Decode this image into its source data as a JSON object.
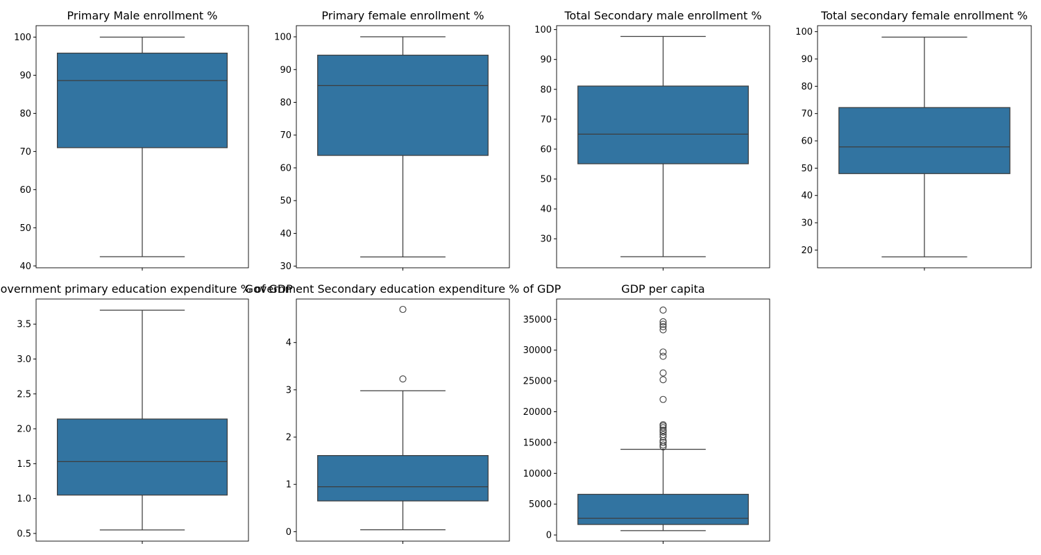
{
  "colors": {
    "box_fill": "#3274a1",
    "box_edge": "#3d3d3d",
    "axes_edge": "#000000",
    "background": "#ffffff"
  },
  "chart_data": [
    {
      "type": "box",
      "title": "Primary Male enrollment %",
      "ylim": [
        39.5,
        103
      ],
      "yticks": [
        40,
        50,
        60,
        70,
        80,
        90,
        100
      ],
      "tick_labels": [
        "40",
        "50",
        "60",
        "70",
        "80",
        "90",
        "100"
      ],
      "box": {
        "whisker_low": 42.4,
        "q1": 71.0,
        "median": 88.6,
        "q3": 95.8,
        "whisker_high": 100.0
      },
      "outliers": []
    },
    {
      "type": "box",
      "title": "Primary female enrollment %",
      "ylim": [
        29.5,
        103.4
      ],
      "yticks": [
        30,
        40,
        50,
        60,
        70,
        80,
        90,
        100
      ],
      "tick_labels": [
        "30",
        "40",
        "50",
        "60",
        "70",
        "80",
        "90",
        "100"
      ],
      "box": {
        "whisker_low": 32.8,
        "q1": 63.8,
        "median": 85.1,
        "q3": 94.4,
        "whisker_high": 100.0
      },
      "outliers": []
    },
    {
      "type": "box",
      "title": "Total Secondary male enrollment %",
      "ylim": [
        20.3,
        101.3
      ],
      "yticks": [
        30,
        40,
        50,
        60,
        70,
        80,
        90,
        100
      ],
      "tick_labels": [
        "30",
        "40",
        "50",
        "60",
        "70",
        "80",
        "90",
        "100"
      ],
      "box": {
        "whisker_low": 24.0,
        "q1": 55.1,
        "median": 65.0,
        "q3": 81.1,
        "whisker_high": 97.7
      },
      "outliers": []
    },
    {
      "type": "box",
      "title": "Total secondary female enrollment %",
      "ylim": [
        13.5,
        102.2
      ],
      "yticks": [
        20,
        30,
        40,
        50,
        60,
        70,
        80,
        90,
        100
      ],
      "tick_labels": [
        "20",
        "30",
        "40",
        "50",
        "60",
        "70",
        "80",
        "90",
        "100"
      ],
      "box": {
        "whisker_low": 17.5,
        "q1": 48.0,
        "median": 57.8,
        "q3": 72.2,
        "whisker_high": 98.0
      },
      "outliers": []
    },
    {
      "type": "box",
      "title": "Government primary education expenditure % of GDP",
      "ylim": [
        0.39,
        3.86
      ],
      "yticks": [
        0.5,
        1.0,
        1.5,
        2.0,
        2.5,
        3.0,
        3.5
      ],
      "tick_labels": [
        "0.5",
        "1.0",
        "1.5",
        "2.0",
        "2.5",
        "3.0",
        "3.5"
      ],
      "box": {
        "whisker_low": 0.55,
        "q1": 1.05,
        "median": 1.53,
        "q3": 2.14,
        "whisker_high": 3.7
      },
      "outliers": []
    },
    {
      "type": "box",
      "title": "Government Secondary education expenditure % of GDP",
      "ylim": [
        -0.2,
        4.92
      ],
      "yticks": [
        0,
        1,
        2,
        3,
        4
      ],
      "tick_labels": [
        "0",
        "1",
        "2",
        "3",
        "4"
      ],
      "box": {
        "whisker_low": 0.04,
        "q1": 0.65,
        "median": 0.95,
        "q3": 1.61,
        "whisker_high": 2.98
      },
      "outliers": [
        3.23,
        4.7
      ]
    },
    {
      "type": "box",
      "title": "GDP per capita",
      "ylim": [
        -1000,
        38300
      ],
      "yticks": [
        0,
        5000,
        10000,
        15000,
        20000,
        25000,
        30000,
        35000
      ],
      "tick_labels": [
        "0",
        "5000",
        "10000",
        "15000",
        "20000",
        "25000",
        "30000",
        "35000"
      ],
      "box": {
        "whisker_low": 700,
        "q1": 1700,
        "median": 2700,
        "q3": 6600,
        "whisker_high": 13900
      },
      "outliers": [
        14300,
        14600,
        15000,
        15300,
        15900,
        16300,
        16700,
        17000,
        17400,
        17700,
        17900,
        22000,
        25200,
        26300,
        29000,
        29700,
        33300,
        33800,
        34200,
        34600,
        36500
      ]
    }
  ]
}
